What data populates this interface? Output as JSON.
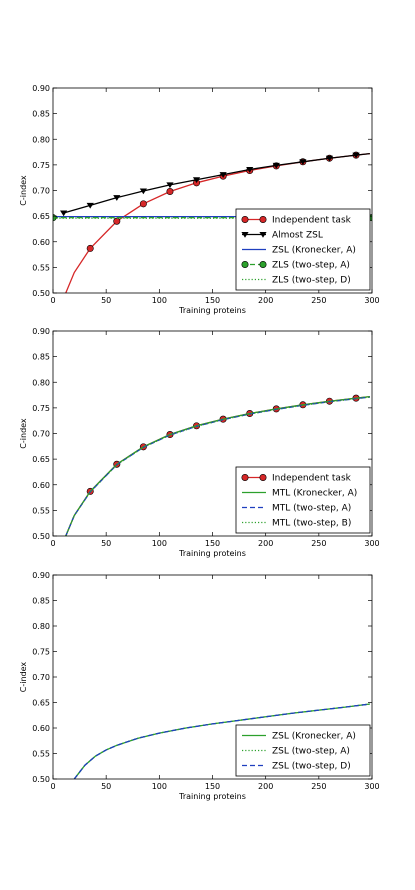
{
  "chart_data": [
    {
      "type": "line",
      "xlabel": "Training proteins",
      "ylabel": "C-index",
      "xlim": [
        0,
        300
      ],
      "ylim": [
        0.5,
        0.9
      ],
      "xticks": [
        0,
        50,
        100,
        150,
        200,
        250,
        300
      ],
      "yticks": [
        0.5,
        0.55,
        0.6,
        0.65,
        0.7,
        0.75,
        0.8,
        0.85,
        0.9
      ],
      "xtick_labels": [
        "0",
        "50",
        "100",
        "150",
        "200",
        "250",
        "300"
      ],
      "ytick_labels": [
        "0.50",
        "0.55",
        "0.60",
        "0.65",
        "0.70",
        "0.75",
        "0.80",
        "0.85",
        "0.90"
      ],
      "grid": false,
      "legend_position": "lower-right",
      "series": [
        {
          "name": "Independent task",
          "color": "#d62728",
          "style": "solid",
          "marker": "circle",
          "x": [
            8,
            12,
            20,
            35,
            60,
            85,
            110,
            135,
            160,
            185,
            210,
            235,
            260,
            285,
            298
          ],
          "y": [
            0.4,
            0.5,
            0.54,
            0.587,
            0.64,
            0.674,
            0.698,
            0.715,
            0.728,
            0.739,
            0.748,
            0.756,
            0.763,
            0.769,
            0.772
          ],
          "marker_x": [
            35,
            60,
            85,
            110,
            135,
            160,
            185,
            210,
            235,
            260,
            285
          ],
          "marker_y": [
            0.587,
            0.64,
            0.674,
            0.698,
            0.715,
            0.728,
            0.739,
            0.748,
            0.756,
            0.763,
            0.769
          ]
        },
        {
          "name": "Almost ZSL",
          "color": "#000000",
          "style": "solid",
          "marker": "triangle-down",
          "x": [
            10,
            35,
            60,
            85,
            110,
            135,
            160,
            185,
            210,
            235,
            260,
            285,
            298
          ],
          "y": [
            0.656,
            0.671,
            0.686,
            0.699,
            0.711,
            0.721,
            0.731,
            0.741,
            0.749,
            0.756,
            0.763,
            0.769,
            0.772
          ],
          "marker_x": [
            10,
            35,
            60,
            85,
            110,
            135,
            160,
            185,
            210,
            235,
            260,
            285
          ],
          "marker_y": [
            0.656,
            0.671,
            0.686,
            0.699,
            0.711,
            0.721,
            0.731,
            0.741,
            0.749,
            0.756,
            0.763,
            0.769
          ]
        },
        {
          "name": "ZSL (Kronecker, A)",
          "color": "#1f3fbf",
          "style": "solid",
          "marker": "none",
          "x": [
            0,
            300
          ],
          "y": [
            0.649,
            0.649
          ]
        },
        {
          "name": "ZLS (two-step, A)",
          "color": "#2ca02c",
          "style": "dashed",
          "marker": "circle",
          "x": [
            0,
            300
          ],
          "y": [
            0.647,
            0.647
          ],
          "marker_x": [
            0,
            300
          ],
          "marker_y": [
            0.647,
            0.647
          ]
        },
        {
          "name": "ZLS (two-step, D)",
          "color": "#2ca02c",
          "style": "dotted",
          "marker": "none",
          "x": [
            0,
            300
          ],
          "y": [
            0.646,
            0.646
          ]
        }
      ]
    },
    {
      "type": "line",
      "xlabel": "Training proteins",
      "ylabel": "C-index",
      "xlim": [
        0,
        300
      ],
      "ylim": [
        0.5,
        0.9
      ],
      "xticks": [
        0,
        50,
        100,
        150,
        200,
        250,
        300
      ],
      "yticks": [
        0.5,
        0.55,
        0.6,
        0.65,
        0.7,
        0.75,
        0.8,
        0.85,
        0.9
      ],
      "xtick_labels": [
        "0",
        "50",
        "100",
        "150",
        "200",
        "250",
        "300"
      ],
      "ytick_labels": [
        "0.50",
        "0.55",
        "0.60",
        "0.65",
        "0.70",
        "0.75",
        "0.80",
        "0.85",
        "0.90"
      ],
      "grid": false,
      "legend_position": "lower-right",
      "series": [
        {
          "name": "Independent task",
          "color": "#d62728",
          "style": "solid",
          "marker": "circle",
          "x": [
            12,
            20,
            35,
            60,
            85,
            110,
            135,
            160,
            185,
            210,
            235,
            260,
            285,
            298
          ],
          "y": [
            0.5,
            0.54,
            0.587,
            0.64,
            0.674,
            0.698,
            0.715,
            0.728,
            0.739,
            0.748,
            0.756,
            0.763,
            0.769,
            0.772
          ],
          "marker_x": [
            35,
            60,
            85,
            110,
            135,
            160,
            185,
            210,
            235,
            260,
            285
          ],
          "marker_y": [
            0.587,
            0.64,
            0.674,
            0.698,
            0.715,
            0.728,
            0.739,
            0.748,
            0.756,
            0.763,
            0.769
          ]
        },
        {
          "name": "MTL (Kronecker, A)",
          "color": "#2ca02c",
          "style": "solid",
          "marker": "none",
          "x": [
            12,
            20,
            35,
            60,
            85,
            110,
            135,
            160,
            185,
            210,
            235,
            260,
            285,
            298
          ],
          "y": [
            0.5,
            0.54,
            0.587,
            0.64,
            0.674,
            0.698,
            0.715,
            0.728,
            0.739,
            0.748,
            0.756,
            0.763,
            0.769,
            0.772
          ]
        },
        {
          "name": "MTL (two-step, A)",
          "color": "#1f3fbf",
          "style": "dashed",
          "marker": "none",
          "x": [
            12,
            20,
            35,
            60,
            85,
            110,
            135,
            160,
            185,
            210,
            235,
            260,
            285,
            298
          ],
          "y": [
            0.5,
            0.54,
            0.586,
            0.639,
            0.673,
            0.697,
            0.714,
            0.727,
            0.738,
            0.747,
            0.755,
            0.762,
            0.768,
            0.771
          ]
        },
        {
          "name": "MTL (two-step, B)",
          "color": "#2ca02c",
          "style": "dotted",
          "marker": "none",
          "x": [
            12,
            20,
            35,
            60,
            85,
            110,
            135,
            160,
            185,
            210,
            235,
            260,
            285,
            298
          ],
          "y": [
            0.5,
            0.54,
            0.586,
            0.639,
            0.673,
            0.697,
            0.714,
            0.727,
            0.738,
            0.747,
            0.755,
            0.762,
            0.768,
            0.771
          ]
        }
      ]
    },
    {
      "type": "line",
      "xlabel": "Training proteins",
      "ylabel": "C-index",
      "xlim": [
        0,
        300
      ],
      "ylim": [
        0.5,
        0.9
      ],
      "xticks": [
        0,
        50,
        100,
        150,
        200,
        250,
        300
      ],
      "yticks": [
        0.5,
        0.55,
        0.6,
        0.65,
        0.7,
        0.75,
        0.8,
        0.85,
        0.9
      ],
      "xtick_labels": [
        "0",
        "50",
        "100",
        "150",
        "200",
        "250",
        "300"
      ],
      "ytick_labels": [
        "0.50",
        "0.55",
        "0.60",
        "0.65",
        "0.70",
        "0.75",
        "0.80",
        "0.85",
        "0.90"
      ],
      "grid": false,
      "legend_position": "lower-right",
      "series": [
        {
          "name": "ZSL (Kronecker, A)",
          "color": "#2ca02c",
          "style": "solid",
          "marker": "none",
          "x": [
            20,
            30,
            40,
            50,
            60,
            80,
            100,
            125,
            150,
            175,
            200,
            225,
            250,
            275,
            298
          ],
          "y": [
            0.5,
            0.527,
            0.545,
            0.557,
            0.566,
            0.58,
            0.59,
            0.6,
            0.608,
            0.615,
            0.622,
            0.629,
            0.635,
            0.641,
            0.647
          ]
        },
        {
          "name": "ZSL (two-step, A)",
          "color": "#2ca02c",
          "style": "dotted",
          "marker": "none",
          "x": [
            20,
            30,
            40,
            50,
            60,
            80,
            100,
            125,
            150,
            175,
            200,
            225,
            250,
            275,
            298
          ],
          "y": [
            0.5,
            0.527,
            0.545,
            0.557,
            0.566,
            0.58,
            0.59,
            0.6,
            0.608,
            0.615,
            0.622,
            0.629,
            0.635,
            0.641,
            0.647
          ]
        },
        {
          "name": "ZSL (two-step, D)",
          "color": "#1f3fbf",
          "style": "dashed",
          "marker": "none",
          "x": [
            20,
            30,
            40,
            50,
            60,
            80,
            100,
            125,
            150,
            175,
            200,
            225,
            250,
            275,
            298
          ],
          "y": [
            0.5,
            0.527,
            0.545,
            0.557,
            0.566,
            0.58,
            0.59,
            0.6,
            0.608,
            0.615,
            0.622,
            0.629,
            0.635,
            0.641,
            0.647
          ]
        }
      ]
    }
  ]
}
